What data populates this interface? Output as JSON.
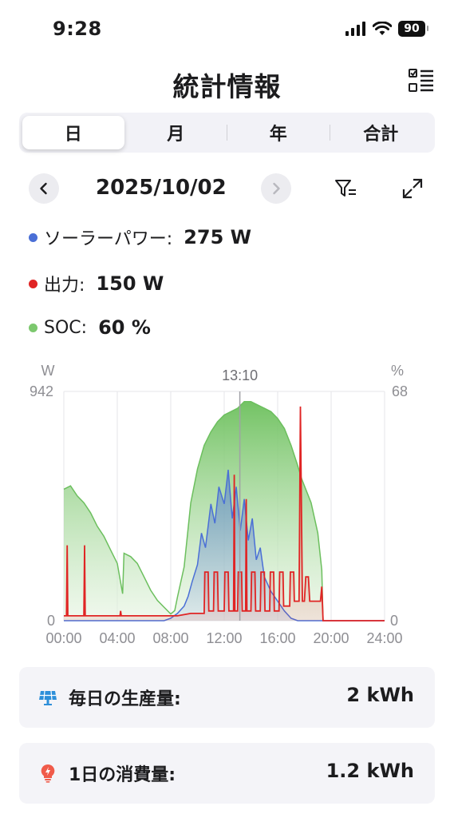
{
  "status_bar": {
    "time": "9:28",
    "battery": "90"
  },
  "header": {
    "title": "統計情報",
    "menu_icon": "checklist-icon"
  },
  "tabs": [
    {
      "label": "日",
      "active": true
    },
    {
      "label": "月",
      "active": false
    },
    {
      "label": "年",
      "active": false
    },
    {
      "label": "合計",
      "active": false
    }
  ],
  "date_nav": {
    "date": "2025/10/02"
  },
  "metrics": [
    {
      "label": "ソーラーパワー:",
      "value": "275 W",
      "color": "#4a6fd6"
    },
    {
      "label": "出力:",
      "value": "150 W",
      "color": "#e02424"
    },
    {
      "label": "SOC:",
      "value": "60 %",
      "color": "#7cc86e"
    }
  ],
  "chart_data": {
    "type": "area",
    "left_axis_unit": "W",
    "right_axis_unit": "%",
    "left_axis_max_label": "942",
    "left_axis_min_label": "0",
    "right_axis_max_label": "68",
    "right_axis_min_label": "0",
    "cursor_label": "13:10",
    "cursor_hour": 13.17,
    "x_tick_labels": [
      "00:00",
      "04:00",
      "08:00",
      "12:00",
      "16:00",
      "20:00",
      "24:00"
    ],
    "x_range_hours": [
      0,
      24
    ],
    "w_range": [
      0,
      942
    ],
    "pct_range": [
      0,
      68
    ],
    "series": [
      {
        "name": "SOC",
        "unit": "%",
        "color": "#7cc86e",
        "points": [
          [
            0,
            39
          ],
          [
            0.5,
            40
          ],
          [
            1,
            37
          ],
          [
            1.5,
            35
          ],
          [
            2,
            32
          ],
          [
            2.5,
            28
          ],
          [
            3,
            25
          ],
          [
            3.5,
            21
          ],
          [
            4,
            17
          ],
          [
            4.4,
            8
          ],
          [
            4.5,
            20
          ],
          [
            5,
            19
          ],
          [
            5.5,
            17
          ],
          [
            6,
            13
          ],
          [
            6.5,
            9
          ],
          [
            7,
            6
          ],
          [
            7.5,
            4
          ],
          [
            8,
            2
          ],
          [
            8.3,
            3
          ],
          [
            8.5,
            7
          ],
          [
            9,
            16
          ],
          [
            9.5,
            35
          ],
          [
            10,
            45
          ],
          [
            10.5,
            52
          ],
          [
            11,
            56
          ],
          [
            11.5,
            59
          ],
          [
            12,
            61
          ],
          [
            12.5,
            62
          ],
          [
            13,
            63
          ],
          [
            13.5,
            65
          ],
          [
            14,
            65
          ],
          [
            14.5,
            64
          ],
          [
            15,
            63
          ],
          [
            15.5,
            62
          ],
          [
            16,
            60
          ],
          [
            16.5,
            57
          ],
          [
            17,
            52
          ],
          [
            17.5,
            46
          ],
          [
            17.8,
            42
          ],
          [
            18,
            40
          ],
          [
            18.5,
            35
          ],
          [
            19,
            26
          ],
          [
            19.3,
            15
          ],
          [
            19.4,
            0
          ]
        ]
      },
      {
        "name": "ソーラーパワー",
        "unit": "W",
        "color": "#4a6fd6",
        "points": [
          [
            0,
            0
          ],
          [
            7.5,
            0
          ],
          [
            8,
            10
          ],
          [
            8.5,
            30
          ],
          [
            9,
            60
          ],
          [
            9.3,
            100
          ],
          [
            9.6,
            160
          ],
          [
            10,
            230
          ],
          [
            10.3,
            360
          ],
          [
            10.6,
            300
          ],
          [
            11,
            480
          ],
          [
            11.3,
            400
          ],
          [
            11.6,
            550
          ],
          [
            12,
            480
          ],
          [
            12.3,
            620
          ],
          [
            12.6,
            420
          ],
          [
            12.9,
            550
          ],
          [
            13.2,
            370
          ],
          [
            13.5,
            500
          ],
          [
            13.8,
            330
          ],
          [
            14.1,
            420
          ],
          [
            14.4,
            250
          ],
          [
            14.7,
            300
          ],
          [
            15,
            180
          ],
          [
            15.5,
            120
          ],
          [
            16,
            80
          ],
          [
            16.5,
            40
          ],
          [
            17,
            10
          ],
          [
            17.5,
            0
          ],
          [
            24,
            0
          ]
        ]
      },
      {
        "name": "出力",
        "unit": "W",
        "color": "#e02424",
        "points": [
          [
            0,
            20
          ],
          [
            0.2,
            20
          ],
          [
            0.25,
            310
          ],
          [
            0.3,
            20
          ],
          [
            1.5,
            20
          ],
          [
            1.55,
            310
          ],
          [
            1.6,
            20
          ],
          [
            3.5,
            20
          ],
          [
            4.2,
            20
          ],
          [
            4.25,
            40
          ],
          [
            4.3,
            20
          ],
          [
            7.5,
            20
          ],
          [
            8.5,
            20
          ],
          [
            9.5,
            30
          ],
          [
            10.5,
            30
          ],
          [
            10.55,
            200
          ],
          [
            10.8,
            200
          ],
          [
            10.85,
            40
          ],
          [
            11.2,
            40
          ],
          [
            11.25,
            200
          ],
          [
            11.5,
            200
          ],
          [
            11.55,
            40
          ],
          [
            12,
            40
          ],
          [
            12.05,
            200
          ],
          [
            12.3,
            200
          ],
          [
            12.35,
            40
          ],
          [
            12.7,
            40
          ],
          [
            12.75,
            600
          ],
          [
            12.8,
            40
          ],
          [
            13,
            40
          ],
          [
            13.05,
            200
          ],
          [
            13.3,
            200
          ],
          [
            13.35,
            40
          ],
          [
            13.6,
            40
          ],
          [
            13.65,
            500
          ],
          [
            13.7,
            40
          ],
          [
            14,
            40
          ],
          [
            14.05,
            200
          ],
          [
            14.3,
            200
          ],
          [
            14.35,
            40
          ],
          [
            14.7,
            40
          ],
          [
            14.75,
            200
          ],
          [
            15,
            200
          ],
          [
            15.05,
            40
          ],
          [
            15.4,
            40
          ],
          [
            15.45,
            200
          ],
          [
            15.7,
            200
          ],
          [
            15.75,
            40
          ],
          [
            16.1,
            40
          ],
          [
            16.15,
            200
          ],
          [
            16.4,
            200
          ],
          [
            16.45,
            60
          ],
          [
            16.9,
            60
          ],
          [
            16.95,
            200
          ],
          [
            17.2,
            200
          ],
          [
            17.25,
            80
          ],
          [
            17.6,
            80
          ],
          [
            17.7,
            880
          ],
          [
            17.85,
            80
          ],
          [
            18,
            80
          ],
          [
            18.1,
            180
          ],
          [
            18.3,
            180
          ],
          [
            18.4,
            80
          ],
          [
            19.2,
            80
          ],
          [
            19.3,
            140
          ],
          [
            19.4,
            0
          ],
          [
            24,
            0
          ]
        ]
      }
    ]
  },
  "summary": [
    {
      "label": "毎日の生産量:",
      "value": "2 kWh",
      "icon": "solar-panel-icon",
      "icon_color": "#2e8fd9"
    },
    {
      "label": "1日の消費量:",
      "value": "1.2 kWh",
      "icon": "lightbulb-icon",
      "icon_color": "#f05b4a"
    }
  ]
}
